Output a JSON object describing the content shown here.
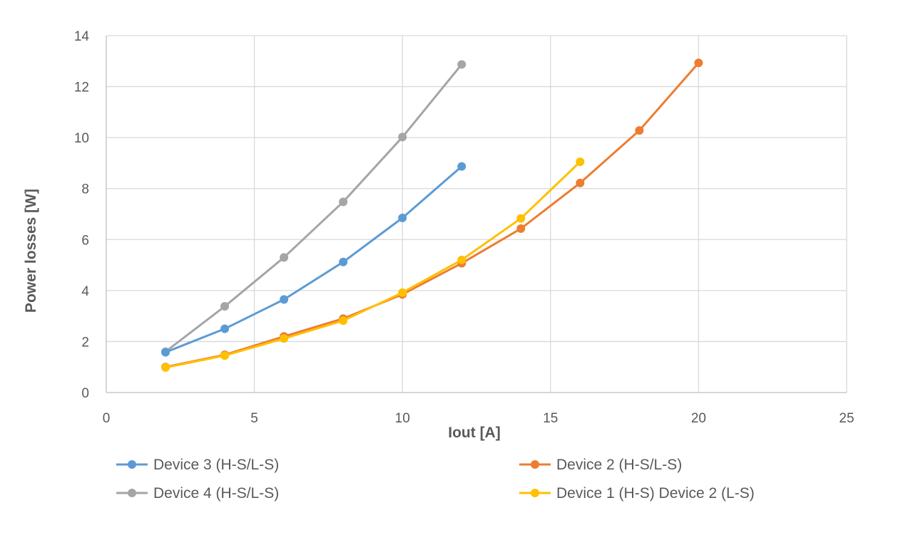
{
  "chart_data": {
    "type": "scatter",
    "xlabel": "Iout [A]",
    "ylabel": "Power losses [W]",
    "xlim": [
      0,
      25
    ],
    "ylim": [
      0,
      14
    ],
    "xticks": [
      0,
      5,
      10,
      15,
      20,
      25
    ],
    "yticks": [
      0,
      2,
      4,
      6,
      8,
      10,
      12,
      14
    ],
    "grid": true,
    "legend": "bottom",
    "series": [
      {
        "name": "Device 3 (H-S/L-S)",
        "color": "#5b9bd5",
        "x": [
          2,
          4,
          6,
          8,
          10,
          12
        ],
        "y": [
          1.58,
          2.5,
          3.65,
          5.12,
          6.85,
          8.87
        ]
      },
      {
        "name": "Device 2 (H-S/L-S)",
        "color": "#ed7d31",
        "x": [
          2,
          4,
          6,
          8,
          10,
          12,
          14,
          16,
          18,
          20
        ],
        "y": [
          1.0,
          1.48,
          2.2,
          2.9,
          3.85,
          5.07,
          6.43,
          8.22,
          10.28,
          12.93
        ]
      },
      {
        "name": "Device 4 (H-S/L-S)",
        "color": "#a5a5a5",
        "x": [
          2,
          4,
          6,
          8,
          10,
          12
        ],
        "y": [
          1.6,
          3.38,
          5.3,
          7.48,
          10.02,
          12.87
        ]
      },
      {
        "name": "Device 1 (H-S) Device 2 (L-S)",
        "color": "#ffc000",
        "x": [
          2,
          4,
          6,
          8,
          10,
          12,
          14,
          16
        ],
        "y": [
          0.98,
          1.45,
          2.12,
          2.82,
          3.92,
          5.2,
          6.83,
          9.05
        ]
      }
    ]
  }
}
